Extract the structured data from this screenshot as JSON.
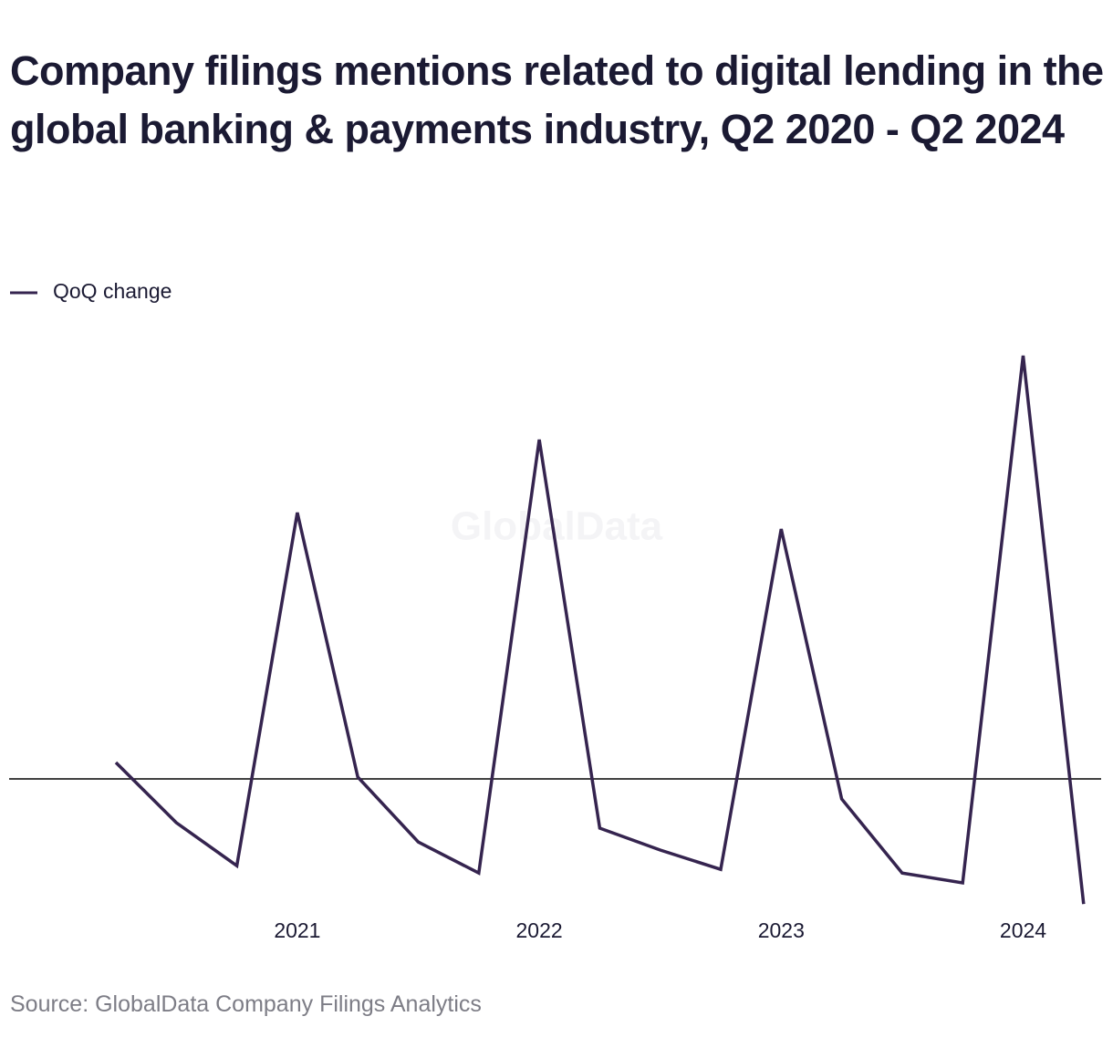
{
  "chart_data": {
    "type": "line",
    "title": "Company filings mentions related to digital lending in the global banking & payments industry, Q2 2020 - Q2 2024",
    "watermark": "GlobalData",
    "source": "Source: GlobalData Company Filings Analytics",
    "categories": [
      null,
      null,
      null,
      "2021",
      null,
      null,
      null,
      "2022",
      null,
      null,
      null,
      "2023",
      null,
      null,
      null,
      "2024",
      null
    ],
    "series": [
      {
        "name": "QoQ change",
        "color": "#35244f",
        "values": [
          4.5,
          -12,
          -23.8,
          73,
          0.5,
          -17.3,
          -25.8,
          93,
          -13.5,
          -19.5,
          -24.8,
          68.5,
          -5.5,
          -25.8,
          -28.5,
          116,
          -34.3
        ]
      }
    ],
    "ylim": [
      -35,
      120
    ],
    "zero_line": true,
    "legend": "top-left"
  }
}
